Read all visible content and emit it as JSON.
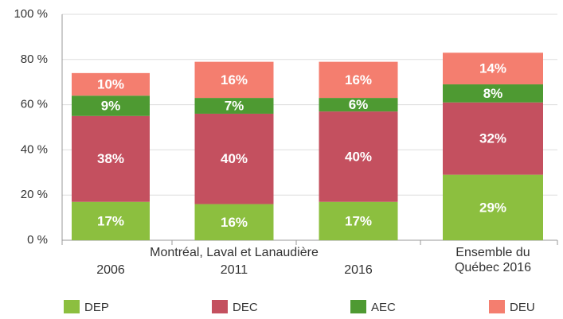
{
  "chart_data": {
    "type": "stacked_bar",
    "group_label": "Montréal, Laval et Lanaudière",
    "categories": [
      "2006",
      "2011",
      "2016",
      "Ensemble du Québec 2016"
    ],
    "series": [
      {
        "name": "DEP",
        "color": "#8cbf3f",
        "values": [
          17,
          16,
          17,
          29
        ],
        "value_labels": [
          "17%",
          "16%",
          "17%",
          "29%"
        ]
      },
      {
        "name": "DEC",
        "color": "#c4505f",
        "values": [
          38,
          40,
          40,
          32
        ],
        "value_labels": [
          "38%",
          "40%",
          "40%",
          "32%"
        ]
      },
      {
        "name": "AEC",
        "color": "#4e9a32",
        "values": [
          9,
          7,
          6,
          8
        ],
        "value_labels": [
          "9%",
          "7%",
          "6%",
          "8%"
        ]
      },
      {
        "name": "DEU",
        "color": "#f47e6f",
        "values": [
          10,
          16,
          16,
          14
        ],
        "value_labels": [
          "10%",
          "16%",
          "16%",
          "14%"
        ]
      }
    ],
    "ylim": [
      0,
      100
    ],
    "yticks": [
      {
        "value": 0,
        "label": "0 %"
      },
      {
        "value": 20,
        "label": "20 %"
      },
      {
        "value": 40,
        "label": "40 %"
      },
      {
        "value": 60,
        "label": "60 %"
      },
      {
        "value": 80,
        "label": "80 %"
      },
      {
        "value": 100,
        "label": "100 %"
      }
    ],
    "grid": true
  }
}
